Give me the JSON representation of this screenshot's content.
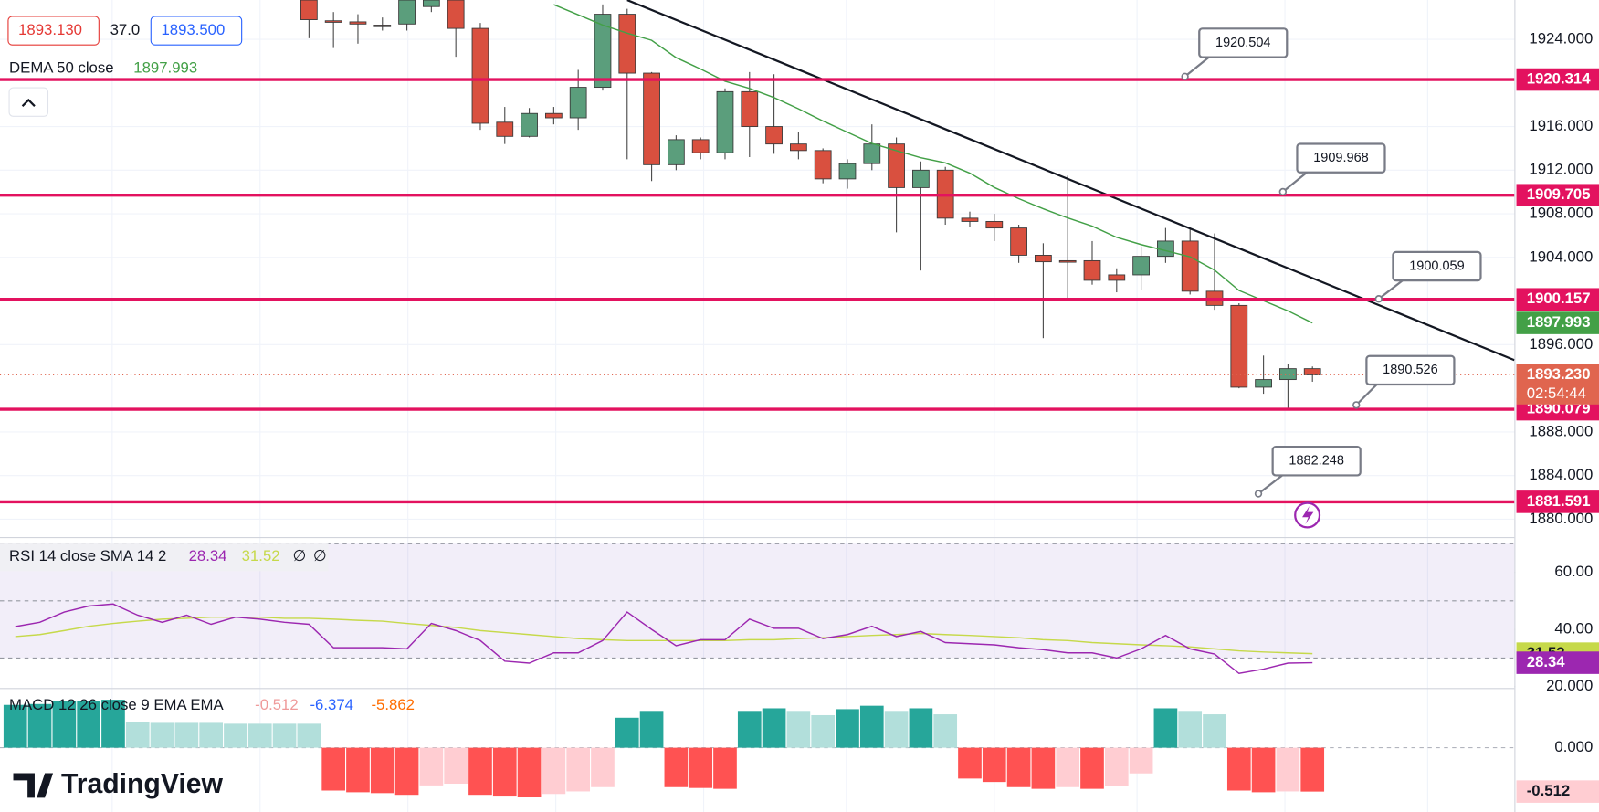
{
  "chart_data": {
    "type": "candlestick",
    "header": {
      "bid": "1893.130",
      "spread": "37.0",
      "ask": "1893.500"
    },
    "up_color": "#5b9e7c",
    "down_color": "#d9503f",
    "open": [
      null,
      null,
      null,
      null,
      null,
      null,
      null,
      null,
      null,
      null,
      null,
      null,
      1927.6,
      1925.7,
      1925.6,
      1925.3,
      1925.4,
      1927.0,
      1927.6,
      1925.0,
      1916.4,
      1915.1,
      1917.2,
      1916.8,
      1919.6,
      1926.3,
      1920.9,
      1912.5,
      1914.8,
      1913.6,
      1919.2,
      1916.0,
      1914.4,
      1913.8,
      1911.2,
      1912.6,
      1914.4,
      1910.4,
      1912.0,
      1907.6,
      1907.3,
      1906.7,
      1904.2,
      1903.7,
      1903.7,
      1902.4,
      1902.4,
      1904.1,
      1905.5,
      1900.9,
      1899.6,
      1892.1,
      1892.8,
      1893.8
    ],
    "high": [
      null,
      null,
      null,
      null,
      null,
      null,
      null,
      null,
      null,
      null,
      null,
      null,
      1927.6,
      1926.5,
      1926.3,
      1926.0,
      1927.6,
      1927.6,
      1927.6,
      1925.5,
      1917.8,
      1917.7,
      1917.8,
      1921.2,
      1927.2,
      1926.8,
      1921.0,
      1915.2,
      1915.0,
      1919.5,
      1921.0,
      1920.8,
      1915.5,
      1914.0,
      1913.0,
      1916.2,
      1915.0,
      1912.8,
      1912.3,
      1908.2,
      1908.0,
      1907.0,
      1905.3,
      1911.5,
      1905.5,
      1903.0,
      1905.0,
      1906.7,
      1906.6,
      1906.2,
      1899.8,
      1895.0,
      1894.2,
      1894.0
    ],
    "low": [
      null,
      null,
      null,
      null,
      null,
      null,
      null,
      null,
      null,
      null,
      null,
      null,
      1924.1,
      1923.2,
      1923.6,
      1924.8,
      1924.8,
      1926.5,
      1922.4,
      1915.7,
      1914.4,
      1915.0,
      1916.2,
      1915.7,
      1919.3,
      1913.0,
      1911.0,
      1912.0,
      1913.0,
      1913.0,
      1913.2,
      1913.5,
      1913.0,
      1910.8,
      1910.3,
      1912.0,
      1906.3,
      1902.8,
      1907.0,
      1906.8,
      1905.5,
      1903.5,
      1896.6,
      1900.3,
      1901.5,
      1900.8,
      1901.0,
      1903.5,
      1900.6,
      1899.2,
      1892.0,
      1891.5,
      1890.1,
      1892.6
    ],
    "close": [
      null,
      null,
      null,
      null,
      null,
      null,
      null,
      null,
      null,
      null,
      null,
      null,
      1925.8,
      1925.6,
      1925.4,
      1925.2,
      1927.6,
      1927.6,
      1925.0,
      1916.3,
      1915.1,
      1917.2,
      1916.8,
      1919.6,
      1926.3,
      1920.9,
      1912.5,
      1914.8,
      1913.6,
      1919.2,
      1916.0,
      1914.4,
      1913.8,
      1911.2,
      1912.6,
      1914.4,
      1910.4,
      1912.0,
      1907.6,
      1907.3,
      1906.7,
      1904.2,
      1903.6,
      1903.6,
      1901.9,
      1901.9,
      1904.1,
      1905.5,
      1900.9,
      1899.6,
      1892.1,
      1892.8,
      1893.8,
      1893.23
    ],
    "ylim": [
      1878.5,
      1927.6
    ],
    "yticks": [
      {
        "value": 1880,
        "label": "1880.000"
      },
      {
        "value": 1884,
        "label": "1884.000"
      },
      {
        "value": 1888,
        "label": "1888.000"
      },
      {
        "value": 1896,
        "label": "1896.000"
      },
      {
        "value": 1904,
        "label": "1904.000"
      },
      {
        "value": 1908,
        "label": "1908.000"
      },
      {
        "value": 1912,
        "label": "1912.000"
      },
      {
        "value": 1916,
        "label": "1916.000"
      },
      {
        "value": 1924,
        "label": "1924.000"
      }
    ],
    "grid": true,
    "dema": {
      "name": "DEMA 50 close",
      "color": "#43a047",
      "values": [
        null,
        null,
        null,
        null,
        null,
        null,
        null,
        null,
        null,
        null,
        null,
        null,
        null,
        null,
        null,
        null,
        null,
        null,
        null,
        null,
        null,
        null,
        1927.18,
        1926.25,
        1925.31,
        1924.56,
        1923.91,
        1922.32,
        1921.28,
        1920.16,
        1919.5,
        1918.66,
        1917.63,
        1916.51,
        1915.48,
        1914.45,
        1913.79,
        1913.14,
        1912.67,
        1911.73,
        1910.42,
        1909.39,
        1908.46,
        1907.62,
        1906.87,
        1905.84,
        1905.18,
        1904.62,
        1904.06,
        1902.84,
        1900.97,
        1900.03,
        1899.1,
        1897.993
      ]
    },
    "levels": {
      "color": "#e3125f",
      "values": [
        1920.314,
        1909.705,
        1900.157,
        1890.079,
        1881.591
      ]
    },
    "alerts": [
      "1920.504",
      "1909.968",
      "1900.059",
      "1890.526",
      "1882.248"
    ],
    "last_price": {
      "value": 1893.23,
      "label": "1893.230"
    },
    "countdown": "02:54:44",
    "last_price_color": "#e0654f",
    "rsi": {
      "title": "RSI 14 close SMA 14 2",
      "color": "#9c27b0",
      "sma_color": "#c6d94a",
      "values": [
        41.0,
        42.5,
        46.1,
        48.2,
        48.9,
        45.0,
        42.5,
        45.0,
        41.8,
        44.3,
        43.6,
        42.5,
        41.8,
        33.6,
        33.6,
        33.6,
        33.2,
        42.1,
        39.6,
        36.1,
        28.9,
        28.2,
        31.8,
        31.8,
        36.1,
        46.1,
        40.0,
        34.3,
        36.4,
        36.4,
        43.6,
        40.4,
        40.4,
        36.8,
        38.2,
        41.1,
        37.5,
        39.3,
        35.4,
        35.0,
        34.6,
        33.6,
        32.9,
        31.8,
        31.8,
        30.0,
        33.2,
        37.9,
        33.2,
        31.4,
        24.6,
        26.1,
        28.2,
        28.34
      ],
      "sma": [
        37.5,
        38.2,
        39.6,
        41.1,
        42.1,
        42.9,
        43.6,
        43.9,
        44.3,
        44.3,
        44.3,
        43.9,
        43.9,
        43.6,
        43.2,
        42.9,
        42.1,
        41.4,
        40.7,
        39.6,
        38.9,
        38.2,
        37.5,
        36.8,
        36.4,
        36.1,
        36.1,
        36.1,
        36.1,
        36.1,
        36.4,
        36.4,
        36.8,
        37.1,
        37.5,
        37.9,
        38.2,
        38.6,
        38.2,
        37.9,
        37.5,
        37.1,
        36.4,
        36.1,
        35.4,
        35.0,
        34.6,
        34.3,
        33.9,
        33.2,
        32.5,
        32.1,
        31.8,
        31.52
      ],
      "extra": [
        "∅",
        "∅"
      ],
      "ylim": [
        19.3,
        71.1
      ],
      "yticks": [
        {
          "value": 60,
          "label": "60.00"
        },
        {
          "value": 40,
          "label": "40.00"
        },
        {
          "value": 20,
          "label": "20.000"
        }
      ],
      "bands": [
        30,
        50,
        70
      ]
    },
    "macd": {
      "title": "MACD 12 26 close 9 EMA EMA",
      "macd_label": "-6.374",
      "signal_label": "-5.862",
      "histogram": [
        0.5,
        0.51,
        0.54,
        0.55,
        0.56,
        0.3,
        0.29,
        0.29,
        0.29,
        0.28,
        0.28,
        0.28,
        0.28,
        -0.5,
        -0.52,
        -0.53,
        -0.55,
        -0.44,
        -0.42,
        -0.55,
        -0.57,
        -0.58,
        -0.54,
        -0.51,
        -0.46,
        0.35,
        0.43,
        -0.46,
        -0.47,
        -0.48,
        0.43,
        0.46,
        0.43,
        0.38,
        0.45,
        0.49,
        0.43,
        0.46,
        0.39,
        -0.36,
        -0.4,
        -0.46,
        -0.48,
        -0.46,
        -0.48,
        -0.45,
        -0.3,
        0.46,
        0.43,
        0.39,
        -0.5,
        -0.52,
        -0.51,
        -0.512
      ],
      "colors": {
        "up_growing": "#26a69a",
        "up_falling": "#b2dfdb",
        "down_growing": "#ff5252",
        "down_falling": "#ffcdd2"
      },
      "ylim": [
        -0.75,
        0.679
      ],
      "yticks": [
        {
          "value": 0,
          "label": "0.000"
        }
      ]
    },
    "brand": "TradingView"
  }
}
